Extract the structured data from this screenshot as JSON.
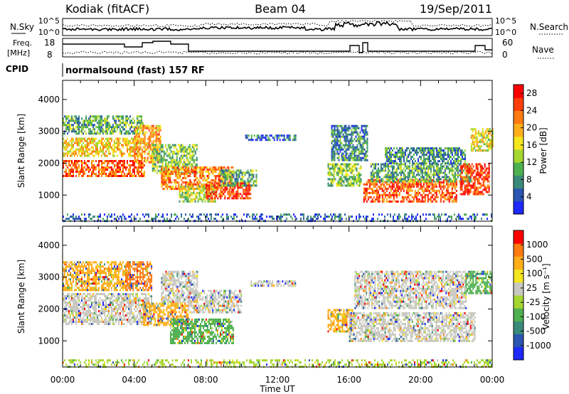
{
  "header": {
    "station": "Kodiak (fitACF)",
    "beam": "Beam 04",
    "date": "19/Sep/2011"
  },
  "sky_panel": {
    "left_label": "N.Sky",
    "right_label": "N.Search",
    "ticks": [
      "10^5",
      "10^0"
    ]
  },
  "freq_panel": {
    "left_label_line1": "Freq.",
    "left_label_line2": "[MHz]",
    "left_ticks": [
      "18",
      "8"
    ],
    "right_label": "Nave",
    "right_ticks": [
      "60",
      "0"
    ]
  },
  "cpid_panel": {
    "label": "CPID",
    "text": "normalsound (fast) 157 RF"
  },
  "chart_data": [
    {
      "type": "heatmap",
      "quantity": "Power",
      "ylabel": "Slant Range [km]",
      "xlabel": "Time UT",
      "x_ticks": [
        "00:00",
        "04:00",
        "08:00",
        "12:00",
        "16:00",
        "20:00",
        "00:00"
      ],
      "x_range_hours": [
        0,
        24
      ],
      "y_ticks": [
        "1000",
        "2000",
        "3000",
        "4000"
      ],
      "y_range_km": [
        180,
        4600
      ],
      "colorbar": {
        "label": "Power [dB]",
        "ticks": [
          "4",
          "8",
          "12",
          "16",
          "20",
          "24",
          "28"
        ],
        "range": [
          0,
          30
        ],
        "colors": [
          "#1e28ff",
          "#2a55b0",
          "#3a8a7a",
          "#4fb050",
          "#a6d630",
          "#f3e61e",
          "#ffae1a",
          "#ff7a10",
          "#ff3d0a",
          "#ff0000"
        ]
      },
      "regions": [
        {
          "t0": 0.0,
          "t1": 4.6,
          "r0": 1600,
          "r1": 2100,
          "v": 24
        },
        {
          "t0": 0.0,
          "t1": 4.3,
          "r0": 2200,
          "r1": 2800,
          "v": 18
        },
        {
          "t0": 0.0,
          "t1": 4.5,
          "r0": 2900,
          "r1": 3500,
          "v": 10
        },
        {
          "t0": 4.0,
          "t1": 5.5,
          "r0": 2000,
          "r1": 3200,
          "v": 20
        },
        {
          "t0": 5.0,
          "t1": 7.5,
          "r0": 1700,
          "r1": 2600,
          "v": 12
        },
        {
          "t0": 5.5,
          "t1": 9.5,
          "r0": 1200,
          "r1": 1900,
          "v": 22
        },
        {
          "t0": 6.5,
          "t1": 8.5,
          "r0": 800,
          "r1": 1300,
          "v": 14
        },
        {
          "t0": 8.0,
          "t1": 10.5,
          "r0": 900,
          "r1": 1400,
          "v": 26
        },
        {
          "t0": 8.8,
          "t1": 10.8,
          "r0": 1300,
          "r1": 1800,
          "v": 10
        },
        {
          "t0": 10.2,
          "t1": 13.0,
          "r0": 2700,
          "r1": 2900,
          "v": 6
        },
        {
          "t0": 14.8,
          "t1": 16.7,
          "r0": 1300,
          "r1": 2000,
          "v": 12
        },
        {
          "t0": 15.0,
          "t1": 17.0,
          "r0": 2100,
          "r1": 3200,
          "v": 8
        },
        {
          "t0": 16.8,
          "t1": 22.0,
          "r0": 800,
          "r1": 1500,
          "v": 24
        },
        {
          "t0": 17.2,
          "t1": 22.8,
          "r0": 1400,
          "r1": 2000,
          "v": 10
        },
        {
          "t0": 18.0,
          "t1": 22.5,
          "r0": 2000,
          "r1": 2500,
          "v": 8
        },
        {
          "t0": 22.2,
          "t1": 23.8,
          "r0": 1000,
          "r1": 2000,
          "v": 26
        },
        {
          "t0": 22.8,
          "t1": 24.0,
          "r0": 2400,
          "r1": 3100,
          "v": 16
        },
        {
          "t0": 0.0,
          "t1": 24.0,
          "r0": 200,
          "r1": 420,
          "v": 5
        }
      ]
    },
    {
      "type": "heatmap",
      "quantity": "Velocity",
      "ylabel": "Slant Range [km]",
      "xlabel": "Time UT",
      "x_ticks": [
        "00:00",
        "04:00",
        "08:00",
        "12:00",
        "16:00",
        "20:00",
        "00:00"
      ],
      "x_range_hours": [
        0,
        24
      ],
      "y_ticks": [
        "1000",
        "2000",
        "3000",
        "4000"
      ],
      "y_range_km": [
        180,
        4600
      ],
      "colorbar": {
        "label": "Velocity [m s⁻¹]",
        "ticks": [
          "1000",
          "500",
          "100",
          "25",
          "-25",
          "-100",
          "-500",
          "-1000"
        ],
        "colors": [
          "#1e28ff",
          "#2a55b0",
          "#3a8a7a",
          "#4fb050",
          "#a6d630",
          "#c8c8c0",
          "#f3e61e",
          "#ffae1a",
          "#ff7a10",
          "#ff0000"
        ]
      },
      "regions": [
        {
          "t0": 0.0,
          "t1": 3.8,
          "r0": 2600,
          "r1": 3500,
          "c": "#ffae1a"
        },
        {
          "t0": 0.0,
          "t1": 5.0,
          "r0": 1500,
          "r1": 2500,
          "c": "#c8c8c0"
        },
        {
          "t0": 3.5,
          "t1": 5.0,
          "r0": 2600,
          "r1": 3500,
          "c": "#ff7a10"
        },
        {
          "t0": 4.5,
          "t1": 7.0,
          "r0": 1500,
          "r1": 2200,
          "c": "#ffae1a"
        },
        {
          "t0": 6.0,
          "t1": 9.5,
          "r0": 900,
          "r1": 1700,
          "c": "#4fb050"
        },
        {
          "t0": 7.0,
          "t1": 10.0,
          "r0": 1900,
          "r1": 2600,
          "c": "#c8c8c0"
        },
        {
          "t0": 5.5,
          "t1": 7.5,
          "r0": 2200,
          "r1": 3200,
          "c": "#c8c8c0"
        },
        {
          "t0": 10.5,
          "t1": 13.0,
          "r0": 2700,
          "r1": 2900,
          "c": "#c8c8c0"
        },
        {
          "t0": 14.8,
          "t1": 16.2,
          "r0": 1300,
          "r1": 2000,
          "c": "#ffae1a"
        },
        {
          "t0": 16.0,
          "t1": 23.0,
          "r0": 1000,
          "r1": 1900,
          "c": "#c8c8c0"
        },
        {
          "t0": 16.3,
          "t1": 22.5,
          "r0": 2000,
          "r1": 3200,
          "c": "#c8c8c0"
        },
        {
          "t0": 22.5,
          "t1": 24.0,
          "r0": 2500,
          "r1": 3200,
          "c": "#4fb050"
        },
        {
          "t0": 0.0,
          "t1": 24.0,
          "r0": 200,
          "r1": 420,
          "c": "#a6d630"
        }
      ]
    }
  ]
}
